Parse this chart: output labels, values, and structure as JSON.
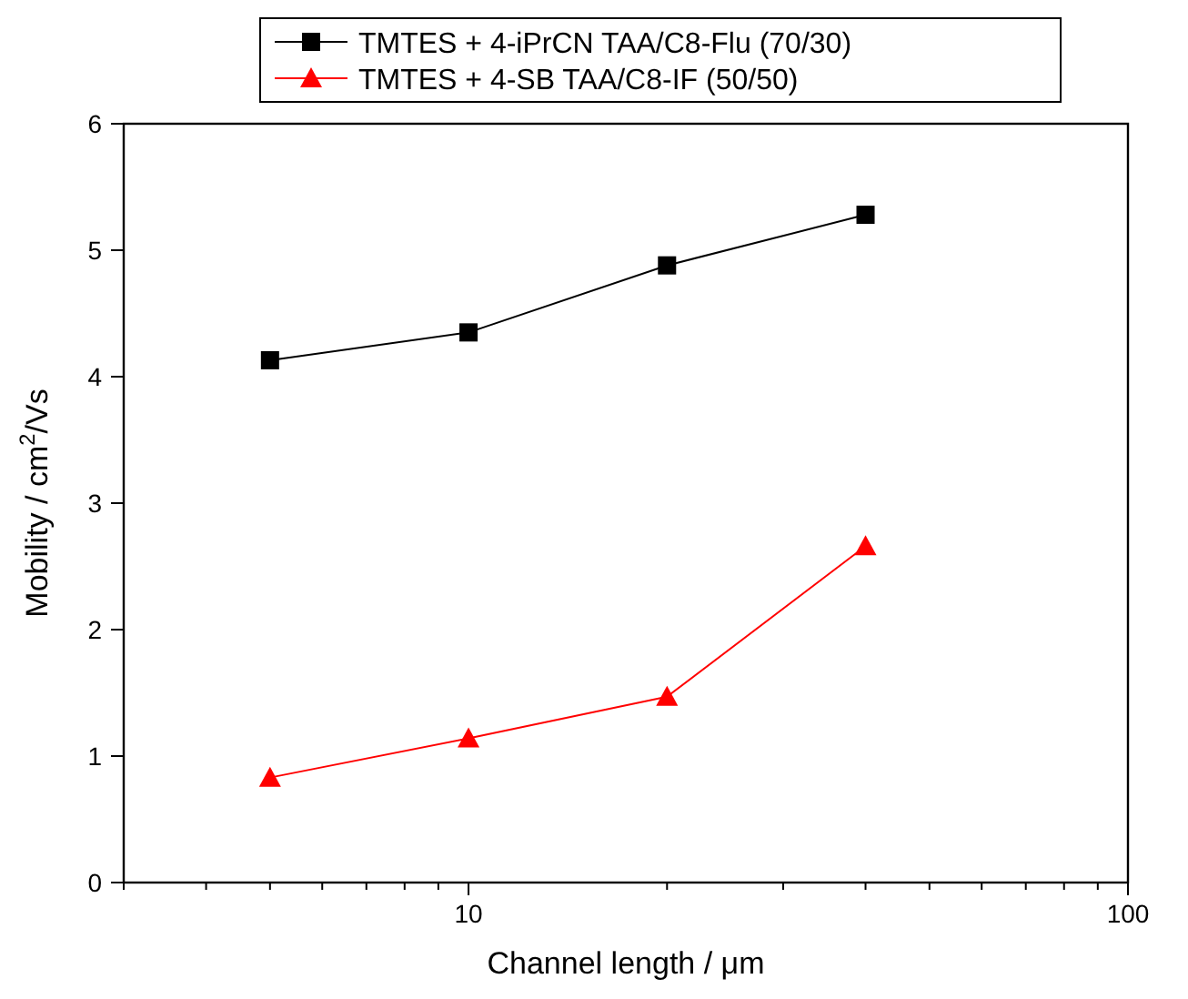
{
  "chart_data": {
    "type": "line",
    "xlabel": "Channel length / μm",
    "ylabel": "Mobility / cm$^{2}$/Vs",
    "log": "x",
    "x": [
      5,
      10,
      20,
      40
    ],
    "series": [
      {
        "name": "TMTES + 4-iPrCN TAA/C8-Flu (70/30)",
        "color": "#000000",
        "marker": "square",
        "values": [
          4.13,
          4.35,
          4.88,
          5.28
        ]
      },
      {
        "name": "TMTES + 4-SB TAA/C8-IF (50/50)",
        "color": "#ff0000",
        "marker": "triangle",
        "values": [
          0.83,
          1.14,
          1.47,
          2.66
        ]
      }
    ],
    "xlim": [
      3,
      100
    ],
    "xticks": [
      {
        "value": 3,
        "label": null
      },
      {
        "value": 4,
        "label": null
      },
      {
        "value": 5,
        "label": null
      },
      {
        "value": 6,
        "label": null
      },
      {
        "value": 7,
        "label": null
      },
      {
        "value": 8,
        "label": null
      },
      {
        "value": 9,
        "label": null
      },
      10,
      {
        "value": 20,
        "label": null
      },
      {
        "value": 30,
        "label": null
      },
      {
        "value": 40,
        "label": null
      },
      {
        "value": 50,
        "label": null
      },
      {
        "value": 60,
        "label": null
      },
      {
        "value": 70,
        "label": null
      },
      {
        "value": 80,
        "label": null
      },
      {
        "value": 90,
        "label": null
      },
      100
    ],
    "ylim": [
      0,
      6
    ],
    "yticks": [
      0,
      1,
      2,
      3,
      4,
      5,
      6
    ],
    "grid": false,
    "legend": "top",
    "line_style": "solid"
  }
}
